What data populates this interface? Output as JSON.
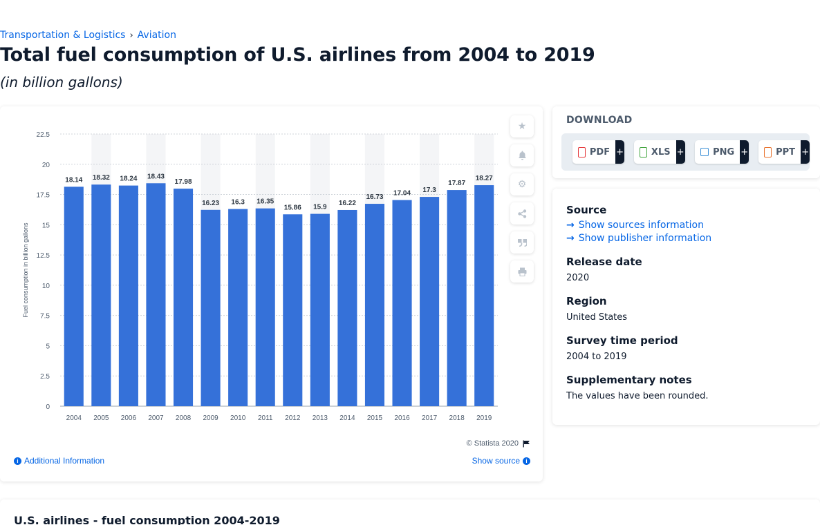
{
  "breadcrumb": {
    "items": [
      "Transportation & Logistics",
      "Aviation"
    ],
    "separator": "›"
  },
  "page": {
    "title": "Total fuel consumption of U.S. airlines from 2004 to 2019",
    "subtitle": "(in billion gallons)"
  },
  "chart_data": {
    "type": "bar",
    "categories": [
      "2004",
      "2005",
      "2006",
      "2007",
      "2008",
      "2009",
      "2010",
      "2011",
      "2012",
      "2013",
      "2014",
      "2015",
      "2016",
      "2017",
      "2018",
      "2019"
    ],
    "values": [
      18.14,
      18.32,
      18.24,
      18.43,
      17.98,
      16.23,
      16.3,
      16.35,
      15.86,
      15.9,
      16.22,
      16.73,
      17.04,
      17.3,
      17.87,
      18.27
    ],
    "ylabel": "Fuel consumption in billion gallons",
    "xlabel": "",
    "ylim": [
      0,
      22.5
    ],
    "yticks": [
      0,
      2.5,
      5,
      7.5,
      10,
      12.5,
      15,
      17.5,
      20,
      22.5
    ],
    "bar_color": "#3571d9",
    "band_color": "#f4f5f7",
    "data_labels": true,
    "grid": "dashed horizontal"
  },
  "chart_footer": {
    "copyright": "© Statista 2020",
    "additional_info": "Additional Information",
    "show_source": "Show source"
  },
  "tools": [
    "star-icon",
    "bell-icon",
    "gear-icon",
    "share-icon",
    "quote-icon",
    "print-icon"
  ],
  "download": {
    "title": "DOWNLOAD",
    "formats": [
      {
        "label": "PDF",
        "color": "#e5383b"
      },
      {
        "label": "XLS",
        "color": "#3ea33a"
      },
      {
        "label": "PNG",
        "color": "#3b8fd6"
      },
      {
        "label": "PPT",
        "color": "#e8712b"
      }
    ],
    "plus": "+"
  },
  "meta": {
    "source_label": "Source",
    "show_sources": "Show sources information",
    "show_publisher": "Show publisher information",
    "release_label": "Release date",
    "release_value": "2020",
    "region_label": "Region",
    "region_value": "United States",
    "survey_label": "Survey time period",
    "survey_value": "2004 to 2019",
    "notes_label": "Supplementary notes",
    "notes_value": "The values have been rounded."
  },
  "bottom": {
    "title": "U.S. airlines - fuel consumption 2004-2019"
  }
}
